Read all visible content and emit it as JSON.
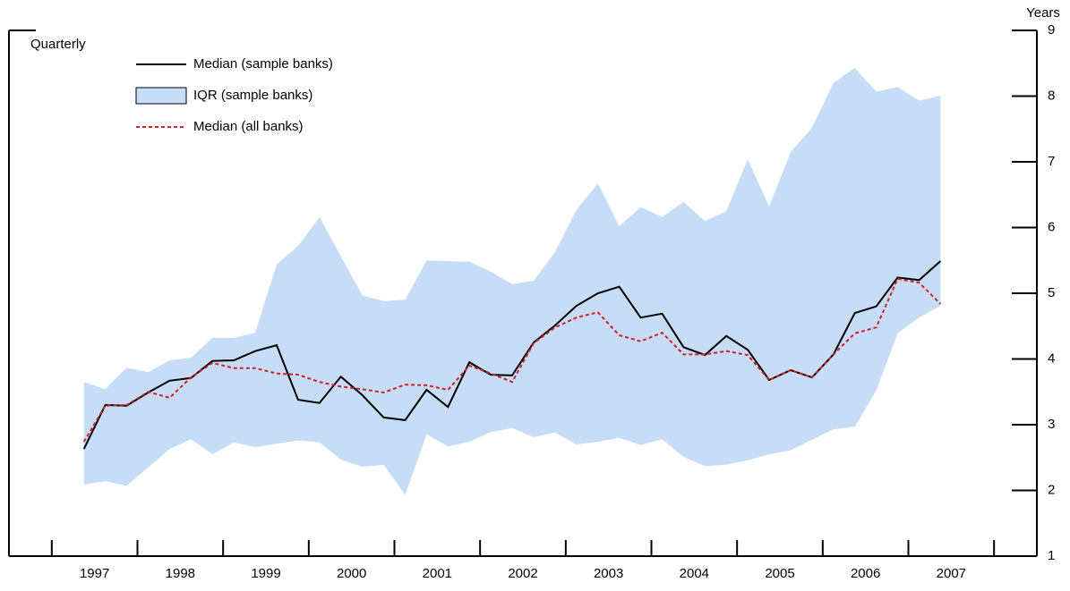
{
  "chart_data": {
    "type": "line",
    "annotation": "Quarterly",
    "y_label": "Years",
    "x": [
      1997.375,
      1997.625,
      1997.875,
      1998.125,
      1998.375,
      1998.625,
      1998.875,
      1999.125,
      1999.375,
      1999.625,
      1999.875,
      2000.125,
      2000.375,
      2000.625,
      2000.875,
      2001.125,
      2001.375,
      2001.625,
      2001.875,
      2002.125,
      2002.375,
      2002.625,
      2002.875,
      2003.125,
      2003.375,
      2003.625,
      2003.875,
      2004.125,
      2004.375,
      2004.625,
      2004.875,
      2005.125,
      2005.375,
      2005.625,
      2005.875,
      2006.125,
      2006.375,
      2006.625,
      2006.875,
      2007.125,
      2007.375
    ],
    "series": [
      {
        "name": "Median (sample banks)",
        "color": "#000000",
        "values": [
          2.63,
          3.3,
          3.29,
          3.49,
          3.67,
          3.71,
          3.97,
          3.98,
          4.12,
          4.21,
          3.38,
          3.33,
          3.73,
          3.45,
          3.11,
          3.07,
          3.53,
          3.27,
          3.95,
          3.76,
          3.75,
          4.25,
          4.51,
          4.81,
          5.0,
          5.1,
          4.63,
          4.69,
          4.18,
          4.06,
          4.35,
          4.14,
          3.68,
          3.83,
          3.72,
          4.07,
          4.7,
          4.8,
          5.24,
          5.2,
          5.49
        ]
      },
      {
        "name": "IQR (sample banks)",
        "color": "#c6dcf7",
        "upper": [
          3.65,
          3.54,
          3.87,
          3.8,
          3.98,
          4.02,
          4.32,
          4.32,
          4.4,
          5.44,
          5.72,
          6.16,
          5.56,
          4.97,
          4.88,
          4.9,
          5.5,
          5.49,
          5.48,
          5.33,
          5.14,
          5.19,
          5.63,
          6.27,
          6.67,
          6.02,
          6.31,
          6.16,
          6.39,
          6.1,
          6.25,
          7.04,
          6.32,
          7.15,
          7.52,
          8.2,
          8.43,
          8.07,
          8.14,
          7.93,
          8.01
        ],
        "lower": [
          2.09,
          2.14,
          2.07,
          2.35,
          2.63,
          2.78,
          2.55,
          2.73,
          2.66,
          2.71,
          2.76,
          2.73,
          2.47,
          2.36,
          2.39,
          1.93,
          2.85,
          2.67,
          2.74,
          2.89,
          2.95,
          2.81,
          2.88,
          2.7,
          2.74,
          2.8,
          2.69,
          2.78,
          2.51,
          2.37,
          2.39,
          2.46,
          2.55,
          2.61,
          2.77,
          2.93,
          2.97,
          3.52,
          4.39,
          4.63,
          4.81
        ]
      },
      {
        "name": "Median (all banks)",
        "color": "#d0202a",
        "dashed": true,
        "values": [
          2.74,
          3.29,
          3.3,
          3.5,
          3.41,
          3.72,
          3.94,
          3.86,
          3.86,
          3.78,
          3.76,
          3.65,
          3.58,
          3.54,
          3.49,
          3.61,
          3.6,
          3.53,
          3.9,
          3.78,
          3.65,
          4.24,
          4.48,
          4.63,
          4.71,
          4.36,
          4.27,
          4.4,
          4.07,
          4.07,
          4.12,
          4.06,
          3.68,
          3.83,
          3.72,
          4.07,
          4.39,
          4.48,
          5.22,
          5.16,
          4.84
        ]
      }
    ],
    "xlim": [
      1996.5,
      2008.5
    ],
    "xticks": [
      {
        "value": 1997.5,
        "label": "1997"
      },
      {
        "value": 1998.5,
        "label": "1998"
      },
      {
        "value": 1999.5,
        "label": "1999"
      },
      {
        "value": 2000.5,
        "label": "2000"
      },
      {
        "value": 2001.5,
        "label": "2001"
      },
      {
        "value": 2002.5,
        "label": "2002"
      },
      {
        "value": 2003.5,
        "label": "2003"
      },
      {
        "value": 2004.5,
        "label": "2004"
      },
      {
        "value": 2005.5,
        "label": "2005"
      },
      {
        "value": 2006.5,
        "label": "2006"
      },
      {
        "value": 2007.5,
        "label": "2007"
      }
    ],
    "xtick_marks": [
      1997,
      1998,
      1999,
      2000,
      2001,
      2002,
      2003,
      2004,
      2005,
      2006,
      2007,
      2008
    ],
    "ylim": [
      1,
      9
    ],
    "yticks": [
      1,
      2,
      3,
      4,
      5,
      6,
      7,
      8,
      9
    ],
    "y_axis_side": "right",
    "legend": "top-left"
  }
}
